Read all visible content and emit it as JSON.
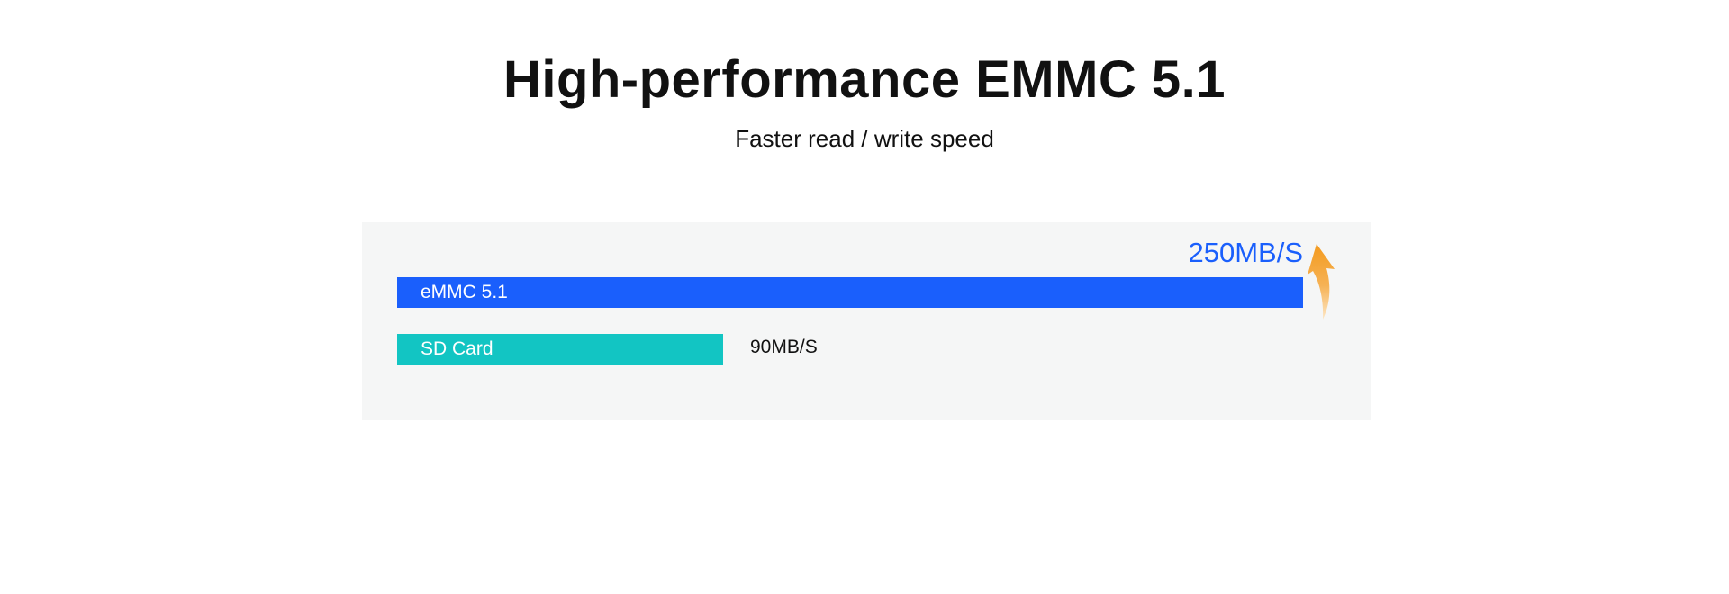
{
  "header": {
    "title": "High-performance EMMC 5.1",
    "subtitle": "Faster read / write speed"
  },
  "colors": {
    "emmc_bar": "#1a5ffc",
    "sd_bar": "#12c5c3",
    "emmc_value": "#1a5ffc",
    "arrow": "#f39a1e",
    "panel_bg": "#f5f6f6"
  },
  "icons": {
    "arrow": "curved-up-arrow-icon"
  },
  "chart_data": {
    "type": "bar",
    "orientation": "horizontal",
    "categories": [
      "eMMC 5.1",
      "SD Card"
    ],
    "values": [
      250,
      90
    ],
    "value_labels": [
      "250MB/S",
      "90MB/S"
    ],
    "title": "",
    "xlabel": "",
    "ylabel": "",
    "xlim": [
      0,
      250
    ],
    "grid": false,
    "legend": "none"
  }
}
